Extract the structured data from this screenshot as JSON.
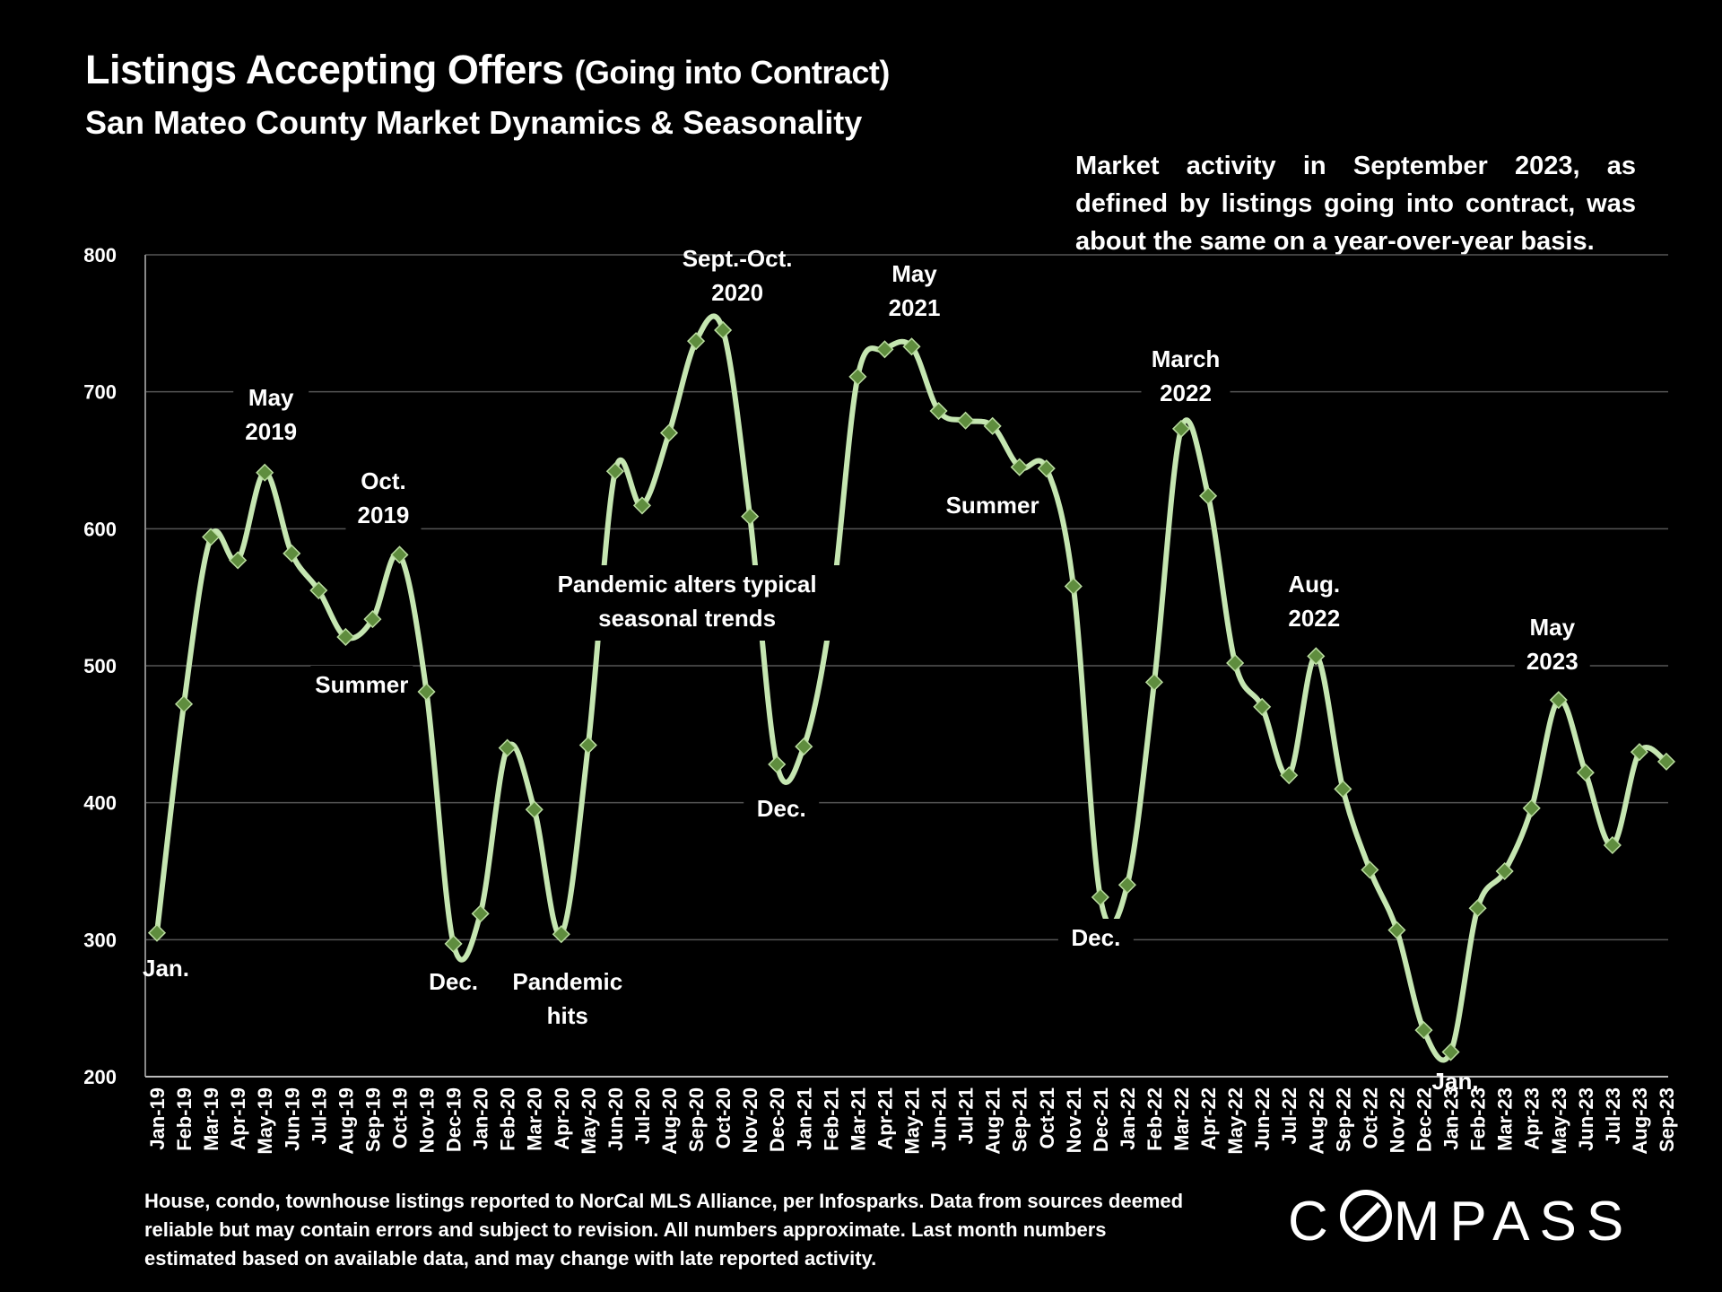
{
  "header": {
    "title_main": "Listings Accepting Offers",
    "title_paren": "(Going into Contract)",
    "subtitle": "San Mateo County Market Dynamics & Seasonality"
  },
  "note": "Market activity in September 2023, as defined by listings going into contract, was about the same on a year-over-year basis.",
  "footer": "House, condo, townhouse listings reported to NorCal MLS Alliance, per Infosparks. Data from sources deemed reliable but may contain errors and subject to revision. All numbers approximate. Last month numbers estimated based on available data, and may change with late reported activity.",
  "logo": {
    "before": "C",
    "after": "MPASS"
  },
  "colors": {
    "line": "#c5e6b1",
    "marker": "#5f8d3e",
    "marker_edge": "#b9dc9f",
    "grid": "#555555",
    "background": "#000000"
  },
  "chart_data": {
    "type": "line",
    "title": "Listings Accepting Offers (Going into Contract)",
    "ylim": [
      200,
      800
    ],
    "yticks": [
      200,
      300,
      400,
      500,
      600,
      700,
      800
    ],
    "grid": true,
    "categories": [
      "Jan-19",
      "Feb-19",
      "Mar-19",
      "Apr-19",
      "May-19",
      "Jun-19",
      "Jul-19",
      "Aug-19",
      "Sep-19",
      "Oct-19",
      "Nov-19",
      "Dec-19",
      "Jan-20",
      "Feb-20",
      "Mar-20",
      "Apr-20",
      "May-20",
      "Jun-20",
      "Jul-20",
      "Aug-20",
      "Sep-20",
      "Oct-20",
      "Nov-20",
      "Dec-20",
      "Jan-21",
      "Feb-21",
      "Mar-21",
      "Apr-21",
      "May-21",
      "Jun-21",
      "Jul-21",
      "Aug-21",
      "Sep-21",
      "Oct-21",
      "Nov-21",
      "Dec-21",
      "Jan-22",
      "Feb-22",
      "Mar-22",
      "Apr-22",
      "May-22",
      "Jun-22",
      "Jul-22",
      "Aug-22",
      "Sep-22",
      "Oct-22",
      "Nov-22",
      "Dec-22",
      "Jan-23",
      "Feb-23",
      "Mar-23",
      "Apr-23",
      "May-23",
      "Jun-23",
      "Jul-23",
      "Aug-23",
      "Sep-23"
    ],
    "series": [
      {
        "name": "Listings Accepting Offers",
        "values": [
          305,
          472,
          594,
          577,
          641,
          582,
          555,
          521,
          534,
          581,
          481,
          297,
          319,
          440,
          395,
          304,
          442,
          642,
          617,
          670,
          737,
          745,
          609,
          428,
          441,
          537,
          711,
          731,
          733,
          686,
          679,
          675,
          645,
          644,
          558,
          331,
          340,
          488,
          673,
          624,
          502,
          470,
          420,
          507,
          410,
          351,
          307,
          234,
          218,
          323,
          350,
          396,
          475,
          422,
          369,
          437,
          430
        ],
        "markers": "diamond"
      }
    ],
    "annotations": [
      {
        "lines": [
          "Jan."
        ],
        "anchor": "Jan-19"
      },
      {
        "lines": [
          "May",
          "2019"
        ],
        "anchor": "May-19"
      },
      {
        "lines": [
          "Summer"
        ],
        "anchor": "Jul-19"
      },
      {
        "lines": [
          "Oct.",
          "2019"
        ],
        "anchor": "Oct-19"
      },
      {
        "lines": [
          "Dec."
        ],
        "anchor": "Dec-19"
      },
      {
        "lines": [
          "Pandemic",
          "hits"
        ],
        "anchor": "Apr-20"
      },
      {
        "lines": [
          "Sept.-Oct.",
          "2020"
        ],
        "anchor": "Oct-20"
      },
      {
        "lines": [
          "Pandemic alters typical",
          "seasonal trends"
        ],
        "anchor": "Oct-20"
      },
      {
        "lines": [
          "Dec."
        ],
        "anchor": "Dec-20"
      },
      {
        "lines": [
          "May",
          "2021"
        ],
        "anchor": "May-21"
      },
      {
        "lines": [
          "Summer"
        ],
        "anchor": "Jul-21"
      },
      {
        "lines": [
          "March",
          "2022"
        ],
        "anchor": "Mar-22"
      },
      {
        "lines": [
          "Dec."
        ],
        "anchor": "Dec-21"
      },
      {
        "lines": [
          "Aug.",
          "2022"
        ],
        "anchor": "Aug-22"
      },
      {
        "lines": [
          "Jan."
        ],
        "anchor": "Jan-23"
      },
      {
        "lines": [
          "May",
          "2023"
        ],
        "anchor": "May-23"
      }
    ]
  }
}
